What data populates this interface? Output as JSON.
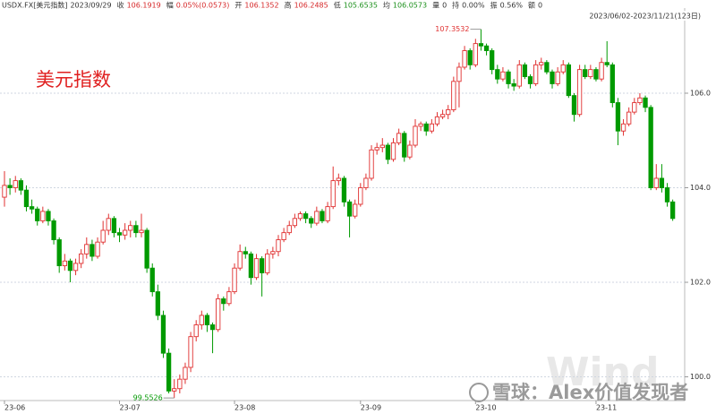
{
  "chart_data": {
    "type": "candlestick",
    "title": "美元指数",
    "header": [
      {
        "label": "USDX.FX[美元指数]",
        "value": "2023/09/29",
        "color": "#333333"
      },
      {
        "label": "收",
        "value": "106.1919",
        "color": "#d62728"
      },
      {
        "label": "幅",
        "value": "0.05%(0.0573)",
        "color": "#d62728"
      },
      {
        "label": "开",
        "value": "106.1352",
        "color": "#d62728"
      },
      {
        "label": "高",
        "value": "106.2485",
        "color": "#d62728"
      },
      {
        "label": "低",
        "value": "105.6535",
        "color": "#1a8f1a"
      },
      {
        "label": "均",
        "value": "106.0573",
        "color": "#1a8f1a"
      },
      {
        "label": "量",
        "value": "0",
        "color": "#333333"
      },
      {
        "label": "持",
        "value": "0.00%",
        "color": "#333333"
      },
      {
        "label": "振",
        "value": "0.56%",
        "color": "#333333"
      },
      {
        "label": "额",
        "value": "0",
        "color": "#333333"
      }
    ],
    "range_label": "2023/06/02-2023/11/21(123日)",
    "watermark": "雪球：Alex价值发现者",
    "watermark_logo": "Wind",
    "up_color": "#e03030",
    "down_color": "#009a00",
    "ylim": [
      99.5,
      107.8
    ],
    "yticks": [
      {
        "value": 100,
        "label": "100.0"
      },
      {
        "value": 102,
        "label": "102.0"
      },
      {
        "value": 104,
        "label": "104.0"
      },
      {
        "value": 106,
        "label": "106.0"
      }
    ],
    "grid": true,
    "categories": [
      "23-06",
      null,
      null,
      null,
      null,
      null,
      null,
      null,
      null,
      null,
      null,
      null,
      null,
      null,
      null,
      null,
      null,
      null,
      null,
      null,
      null,
      "23-07",
      null,
      null,
      null,
      null,
      null,
      null,
      null,
      null,
      null,
      null,
      null,
      null,
      null,
      null,
      null,
      null,
      null,
      null,
      null,
      null,
      "23-08",
      null,
      null,
      null,
      null,
      null,
      null,
      null,
      null,
      null,
      null,
      null,
      null,
      null,
      null,
      null,
      null,
      null,
      null,
      null,
      null,
      null,
      null,
      "23-09",
      null,
      null,
      null,
      null,
      null,
      null,
      null,
      null,
      null,
      null,
      null,
      null,
      null,
      null,
      null,
      null,
      null,
      null,
      null,
      null,
      "23-10",
      null,
      null,
      null,
      null,
      null,
      null,
      null,
      null,
      null,
      null,
      null,
      null,
      null,
      null,
      null,
      null,
      null,
      null,
      null,
      null,
      null,
      "23-11",
      null,
      null,
      null,
      null,
      null,
      null,
      null,
      null,
      null,
      null,
      null,
      null,
      null,
      null
    ],
    "candles": [
      [
        103.8,
        104.35,
        103.6,
        104.05
      ],
      [
        104.05,
        104.2,
        103.85,
        104.0
      ],
      [
        104.0,
        104.25,
        103.9,
        104.15
      ],
      [
        104.15,
        104.2,
        103.85,
        103.95
      ],
      [
        103.95,
        104.05,
        103.5,
        103.6
      ],
      [
        103.6,
        103.75,
        103.45,
        103.55
      ],
      [
        103.55,
        103.6,
        103.2,
        103.3
      ],
      [
        103.3,
        103.6,
        103.25,
        103.5
      ],
      [
        103.5,
        103.55,
        103.2,
        103.3
      ],
      [
        103.3,
        103.35,
        102.8,
        102.9
      ],
      [
        102.9,
        102.95,
        102.2,
        102.35
      ],
      [
        102.35,
        102.6,
        102.25,
        102.45
      ],
      [
        102.45,
        102.5,
        102.0,
        102.25
      ],
      [
        102.25,
        102.5,
        102.15,
        102.4
      ],
      [
        102.4,
        102.7,
        102.3,
        102.6
      ],
      [
        102.6,
        102.95,
        102.5,
        102.8
      ],
      [
        102.8,
        102.9,
        102.45,
        102.55
      ],
      [
        102.55,
        102.95,
        102.5,
        102.85
      ],
      [
        102.85,
        103.3,
        102.8,
        103.1
      ],
      [
        103.1,
        103.45,
        103.0,
        103.35
      ],
      [
        103.35,
        103.4,
        102.95,
        103.05
      ],
      [
        103.05,
        103.15,
        102.85,
        103.0
      ],
      [
        103.0,
        103.25,
        102.9,
        103.1
      ],
      [
        103.1,
        103.3,
        102.95,
        103.2
      ],
      [
        103.2,
        103.3,
        102.95,
        103.05
      ],
      [
        103.05,
        103.45,
        102.95,
        103.1
      ],
      [
        103.1,
        103.15,
        102.2,
        102.3
      ],
      [
        102.3,
        102.4,
        101.7,
        101.8
      ],
      [
        101.8,
        101.95,
        101.2,
        101.3
      ],
      [
        101.3,
        101.4,
        100.4,
        100.5
      ],
      [
        100.5,
        100.6,
        99.65,
        99.7
      ],
      [
        99.7,
        99.95,
        99.5526,
        99.75
      ],
      [
        99.75,
        100.05,
        99.65,
        99.95
      ],
      [
        99.95,
        100.3,
        99.85,
        100.2
      ],
      [
        100.2,
        100.95,
        100.1,
        100.85
      ],
      [
        100.85,
        101.2,
        100.75,
        101.1
      ],
      [
        101.1,
        101.4,
        101.0,
        101.3
      ],
      [
        101.3,
        101.35,
        100.95,
        101.1
      ],
      [
        101.1,
        101.15,
        100.5,
        101.0
      ],
      [
        101.0,
        101.75,
        100.95,
        101.65
      ],
      [
        101.65,
        101.7,
        101.4,
        101.55
      ],
      [
        101.55,
        101.9,
        101.5,
        101.8
      ],
      [
        101.8,
        102.4,
        101.75,
        102.3
      ],
      [
        102.3,
        102.8,
        102.25,
        102.65
      ],
      [
        102.65,
        102.75,
        102.5,
        102.6
      ],
      [
        102.6,
        102.65,
        101.95,
        102.1
      ],
      [
        102.1,
        102.6,
        102.05,
        102.5
      ],
      [
        102.5,
        102.55,
        101.7,
        102.2
      ],
      [
        102.2,
        102.7,
        102.15,
        102.6
      ],
      [
        102.6,
        102.75,
        102.5,
        102.65
      ],
      [
        102.65,
        103.0,
        102.55,
        102.9
      ],
      [
        102.9,
        103.15,
        102.85,
        103.05
      ],
      [
        103.05,
        103.3,
        103.0,
        103.2
      ],
      [
        103.2,
        103.45,
        103.15,
        103.35
      ],
      [
        103.35,
        103.5,
        103.3,
        103.45
      ],
      [
        103.45,
        103.5,
        103.25,
        103.35
      ],
      [
        103.35,
        103.4,
        103.15,
        103.25
      ],
      [
        103.25,
        103.6,
        103.2,
        103.5
      ],
      [
        103.5,
        103.55,
        103.25,
        103.3
      ],
      [
        103.3,
        103.7,
        103.25,
        103.6
      ],
      [
        103.6,
        104.45,
        103.55,
        104.15
      ],
      [
        104.15,
        104.3,
        104.05,
        104.2
      ],
      [
        104.2,
        104.25,
        103.6,
        103.7
      ],
      [
        103.7,
        103.75,
        102.95,
        103.4
      ],
      [
        103.4,
        103.75,
        103.35,
        103.65
      ],
      [
        103.65,
        104.1,
        103.6,
        104.0
      ],
      [
        104.0,
        104.3,
        103.95,
        104.2
      ],
      [
        104.2,
        104.9,
        104.15,
        104.8
      ],
      [
        104.8,
        104.95,
        104.7,
        104.85
      ],
      [
        104.85,
        105.05,
        104.75,
        104.9
      ],
      [
        104.9,
        104.95,
        104.5,
        104.6
      ],
      [
        104.6,
        105.05,
        104.55,
        104.95
      ],
      [
        104.95,
        105.25,
        104.9,
        105.15
      ],
      [
        105.15,
        105.2,
        104.55,
        104.65
      ],
      [
        104.65,
        105.0,
        104.6,
        104.9
      ],
      [
        104.9,
        105.45,
        104.85,
        105.3
      ],
      [
        105.3,
        105.4,
        105.2,
        105.35
      ],
      [
        105.35,
        105.4,
        105.1,
        105.2
      ],
      [
        105.2,
        105.45,
        105.15,
        105.35
      ],
      [
        105.35,
        105.6,
        105.3,
        105.5
      ],
      [
        105.5,
        105.65,
        105.45,
        105.55
      ],
      [
        105.55,
        105.75,
        105.45,
        105.65
      ],
      [
        105.65,
        106.35,
        105.6,
        106.25
      ],
      [
        106.25,
        106.65,
        105.7,
        106.55
      ],
      [
        106.55,
        107.0,
        106.5,
        106.9
      ],
      [
        106.9,
        106.95,
        106.5,
        106.6
      ],
      [
        106.6,
        107.15,
        106.55,
        107.05
      ],
      [
        107.05,
        107.3532,
        106.9,
        107.0
      ],
      [
        107.0,
        107.05,
        106.8,
        106.9
      ],
      [
        106.9,
        106.95,
        106.4,
        106.5
      ],
      [
        106.5,
        106.6,
        106.2,
        106.3
      ],
      [
        106.3,
        106.55,
        106.25,
        106.45
      ],
      [
        106.45,
        106.5,
        106.1,
        106.2
      ],
      [
        106.2,
        106.3,
        106.05,
        106.15
      ],
      [
        106.15,
        106.7,
        106.1,
        106.6
      ],
      [
        106.6,
        106.65,
        106.3,
        106.35
      ],
      [
        106.35,
        106.4,
        106.1,
        106.2
      ],
      [
        106.2,
        106.7,
        106.15,
        106.6
      ],
      [
        106.6,
        106.75,
        106.5,
        106.65
      ],
      [
        106.65,
        106.7,
        106.4,
        106.45
      ],
      [
        106.45,
        106.5,
        106.1,
        106.2
      ],
      [
        106.2,
        106.55,
        106.15,
        106.45
      ],
      [
        106.45,
        106.7,
        106.4,
        106.6
      ],
      [
        106.6,
        106.65,
        105.9,
        105.95
      ],
      [
        105.95,
        106.0,
        105.4,
        105.55
      ],
      [
        105.55,
        106.6,
        105.5,
        106.5
      ],
      [
        106.5,
        106.6,
        106.3,
        106.35
      ],
      [
        106.35,
        106.6,
        106.3,
        106.5
      ],
      [
        106.5,
        106.55,
        106.25,
        106.3
      ],
      [
        106.3,
        106.75,
        106.25,
        106.65
      ],
      [
        106.65,
        107.1,
        106.55,
        106.6
      ],
      [
        106.6,
        106.65,
        105.7,
        105.8
      ],
      [
        105.8,
        105.9,
        104.9,
        105.2
      ],
      [
        105.2,
        105.45,
        105.1,
        105.35
      ],
      [
        105.35,
        105.7,
        105.3,
        105.6
      ],
      [
        105.6,
        105.9,
        105.55,
        105.8
      ],
      [
        105.8,
        106.0,
        105.75,
        105.9
      ],
      [
        105.9,
        105.95,
        105.6,
        105.7
      ],
      [
        105.7,
        105.75,
        103.95,
        104.0
      ],
      [
        104.0,
        104.5,
        103.95,
        104.2
      ],
      [
        104.2,
        104.5,
        103.9,
        104.0
      ],
      [
        104.0,
        104.1,
        103.6,
        103.7
      ],
      [
        103.7,
        103.75,
        103.3,
        103.35
      ]
    ],
    "annotations": [
      {
        "candle": 87,
        "field": 1
      },
      {
        "candle": 31,
        "field": 2
      }
    ]
  }
}
